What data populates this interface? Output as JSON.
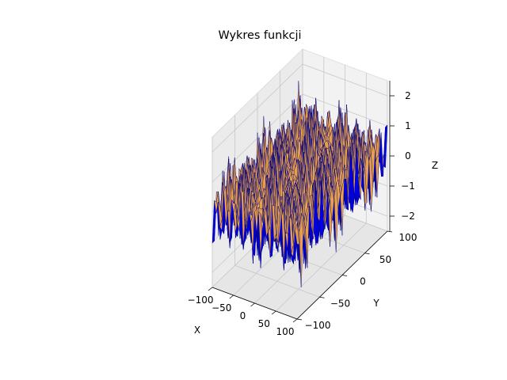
{
  "chart_data": {
    "type": "surface3d",
    "title": "Wykres funkcji",
    "xlabel": "X",
    "ylabel": "Y",
    "zlabel": "Z",
    "xlim": [
      -100,
      100
    ],
    "ylim": [
      -100,
      100
    ],
    "zlim": [
      -2.5,
      2.5
    ],
    "x_ticks": [
      -100,
      -50,
      0,
      50,
      100
    ],
    "y_ticks": [
      -100,
      -50,
      0,
      50,
      100
    ],
    "z_ticks": [
      -2,
      -1,
      0,
      1,
      2
    ],
    "x_tick_labels": [
      "−100",
      "−50",
      "0",
      "50",
      "100"
    ],
    "y_tick_labels": [
      "−100",
      "−50",
      "0",
      "50",
      "100"
    ],
    "z_tick_labels": [
      "−2",
      "−1",
      "0",
      "1",
      "2"
    ],
    "surface_color": "#0000cc",
    "edge_color": "#000080",
    "backface_color": "#e8a04a",
    "pane_color": "#f2f2f2",
    "grid": true,
    "surface_amplitude": 2.5
  }
}
